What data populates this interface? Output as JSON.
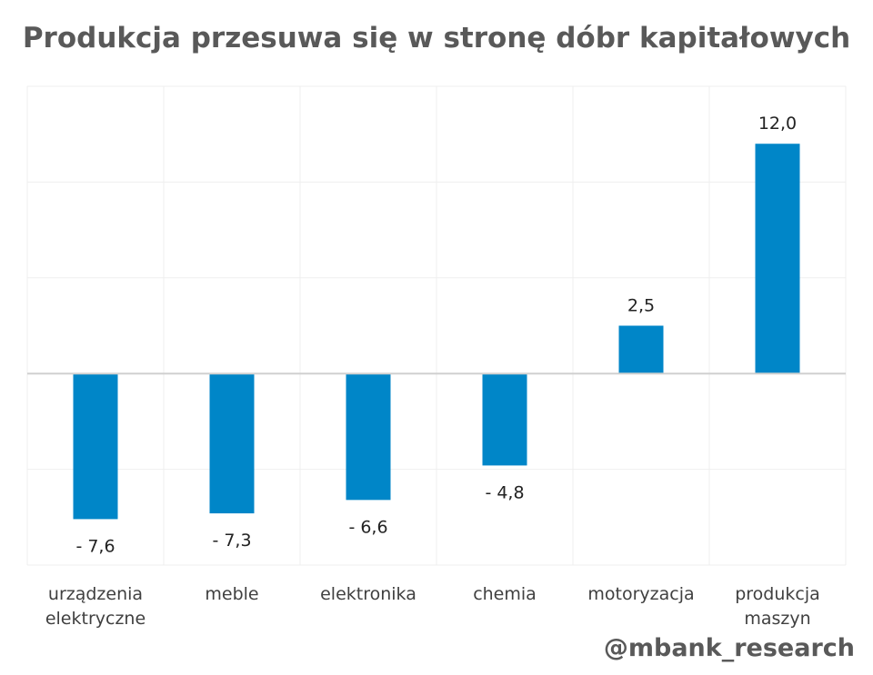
{
  "chart_data": {
    "type": "bar",
    "title": "Produkcja przesuwa się w stronę dóbr kapitałowych",
    "categories": [
      "urządzenia elektryczne",
      "meble",
      "elektronika",
      "chemia",
      "motoryzacja",
      "produkcja maszyn"
    ],
    "category_lines": [
      [
        "urządzenia",
        "elektryczne"
      ],
      [
        "meble"
      ],
      [
        "elektronika"
      ],
      [
        "chemia"
      ],
      [
        "motoryzacja"
      ],
      [
        "produkcja",
        "maszyn"
      ]
    ],
    "values": [
      -7.6,
      -7.3,
      -6.6,
      -4.8,
      2.5,
      12.0
    ],
    "data_labels": [
      "- 7,6",
      "- 7,3",
      "- 6,6",
      "- 4,8",
      "2,5",
      "12,0"
    ],
    "xlabel": "",
    "ylabel": "",
    "ylim": [
      -10,
      15
    ],
    "grid_step": 5,
    "grid": true,
    "bar_color": "#0086C8"
  },
  "credit": "@mbank_research"
}
